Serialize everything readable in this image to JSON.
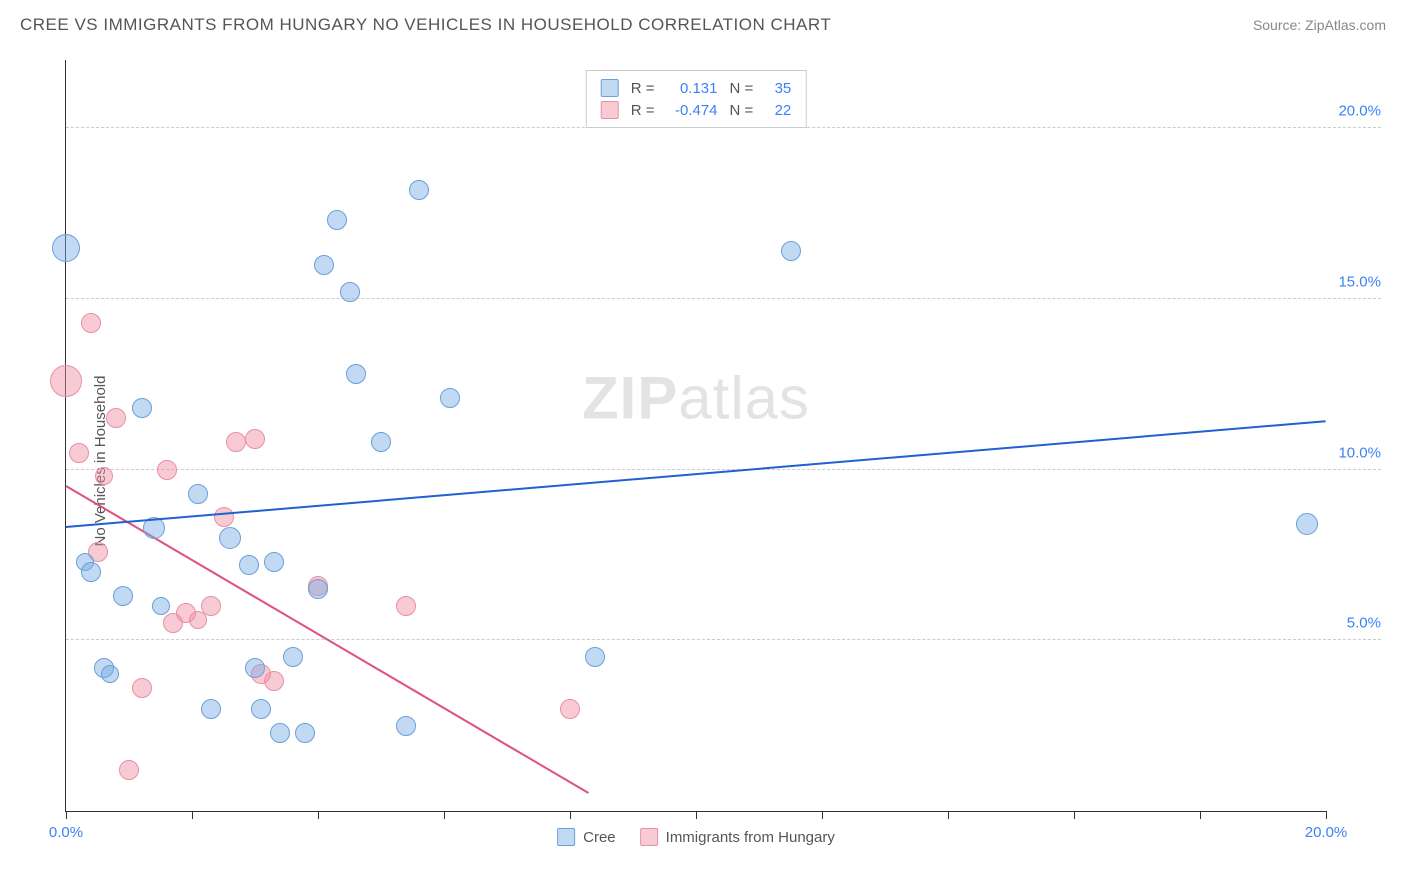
{
  "title": "CREE VS IMMIGRANTS FROM HUNGARY NO VEHICLES IN HOUSEHOLD CORRELATION CHART",
  "source_label": "Source:",
  "source_name": "ZipAtlas.com",
  "y_axis_label": "No Vehicles in Household",
  "watermark_bold": "ZIP",
  "watermark_light": "atlas",
  "chart": {
    "type": "scatter",
    "xlim": [
      0,
      20
    ],
    "ylim": [
      0,
      22
    ],
    "x_ticks_minor": [
      0,
      2,
      4,
      6,
      8,
      10,
      12,
      14,
      16,
      18,
      20
    ],
    "x_tick_labels": [
      {
        "x": 0,
        "label": "0.0%"
      },
      {
        "x": 20,
        "label": "20.0%"
      }
    ],
    "y_grid": [
      {
        "y": 5,
        "label": "5.0%"
      },
      {
        "y": 10,
        "label": "10.0%"
      },
      {
        "y": 15,
        "label": "15.0%"
      },
      {
        "y": 20,
        "label": "20.0%"
      }
    ],
    "background_color": "#ffffff",
    "grid_color": "#cccccc",
    "axis_color": "#333333",
    "tick_label_color": "#3b82f6"
  },
  "series": {
    "cree": {
      "label": "Cree",
      "fill": "rgba(120,170,230,0.45)",
      "stroke": "#6aa0d8",
      "trend_color": "#2060d0",
      "R": "0.131",
      "N": "35",
      "trend": {
        "x1": 0,
        "y1": 8.3,
        "x2": 20,
        "y2": 11.4
      },
      "points": [
        {
          "x": 0.0,
          "y": 16.5,
          "r": 14
        },
        {
          "x": 0.3,
          "y": 7.3,
          "r": 9
        },
        {
          "x": 0.4,
          "y": 7.0,
          "r": 10
        },
        {
          "x": 0.6,
          "y": 4.2,
          "r": 10
        },
        {
          "x": 0.7,
          "y": 4.0,
          "r": 9
        },
        {
          "x": 0.9,
          "y": 6.3,
          "r": 10
        },
        {
          "x": 1.2,
          "y": 11.8,
          "r": 10
        },
        {
          "x": 1.4,
          "y": 8.3,
          "r": 11
        },
        {
          "x": 1.5,
          "y": 6.0,
          "r": 9
        },
        {
          "x": 2.1,
          "y": 9.3,
          "r": 10
        },
        {
          "x": 2.3,
          "y": 3.0,
          "r": 10
        },
        {
          "x": 2.6,
          "y": 8.0,
          "r": 11
        },
        {
          "x": 2.9,
          "y": 7.2,
          "r": 10
        },
        {
          "x": 3.0,
          "y": 4.2,
          "r": 10
        },
        {
          "x": 3.1,
          "y": 3.0,
          "r": 10
        },
        {
          "x": 3.3,
          "y": 7.3,
          "r": 10
        },
        {
          "x": 3.4,
          "y": 2.3,
          "r": 10
        },
        {
          "x": 3.6,
          "y": 4.5,
          "r": 10
        },
        {
          "x": 3.8,
          "y": 2.3,
          "r": 10
        },
        {
          "x": 4.0,
          "y": 6.5,
          "r": 10
        },
        {
          "x": 4.1,
          "y": 16.0,
          "r": 10
        },
        {
          "x": 4.3,
          "y": 17.3,
          "r": 10
        },
        {
          "x": 4.5,
          "y": 15.2,
          "r": 10
        },
        {
          "x": 4.6,
          "y": 12.8,
          "r": 10
        },
        {
          "x": 5.4,
          "y": 2.5,
          "r": 10
        },
        {
          "x": 5.0,
          "y": 10.8,
          "r": 10
        },
        {
          "x": 5.6,
          "y": 18.2,
          "r": 10
        },
        {
          "x": 6.1,
          "y": 12.1,
          "r": 10
        },
        {
          "x": 8.4,
          "y": 4.5,
          "r": 10
        },
        {
          "x": 11.5,
          "y": 16.4,
          "r": 10
        },
        {
          "x": 19.7,
          "y": 8.4,
          "r": 11
        }
      ]
    },
    "hungary": {
      "label": "Immigrants from Hungary",
      "fill": "rgba(240,140,160,0.45)",
      "stroke": "#e890a5",
      "trend_color": "#e05080",
      "R": "-0.474",
      "N": "22",
      "trend": {
        "x1": 0,
        "y1": 9.5,
        "x2": 8.3,
        "y2": 0.5
      },
      "points": [
        {
          "x": 0.0,
          "y": 12.6,
          "r": 16
        },
        {
          "x": 0.2,
          "y": 10.5,
          "r": 10
        },
        {
          "x": 0.4,
          "y": 14.3,
          "r": 10
        },
        {
          "x": 0.5,
          "y": 7.6,
          "r": 10
        },
        {
          "x": 0.6,
          "y": 9.8,
          "r": 9
        },
        {
          "x": 0.8,
          "y": 11.5,
          "r": 10
        },
        {
          "x": 1.0,
          "y": 1.2,
          "r": 10
        },
        {
          "x": 1.2,
          "y": 3.6,
          "r": 10
        },
        {
          "x": 1.6,
          "y": 10.0,
          "r": 10
        },
        {
          "x": 1.7,
          "y": 5.5,
          "r": 10
        },
        {
          "x": 1.9,
          "y": 5.8,
          "r": 10
        },
        {
          "x": 2.1,
          "y": 5.6,
          "r": 9
        },
        {
          "x": 2.3,
          "y": 6.0,
          "r": 10
        },
        {
          "x": 2.5,
          "y": 8.6,
          "r": 10
        },
        {
          "x": 2.7,
          "y": 10.8,
          "r": 10
        },
        {
          "x": 3.0,
          "y": 10.9,
          "r": 10
        },
        {
          "x": 3.1,
          "y": 4.0,
          "r": 10
        },
        {
          "x": 3.3,
          "y": 3.8,
          "r": 10
        },
        {
          "x": 4.0,
          "y": 6.6,
          "r": 10
        },
        {
          "x": 5.4,
          "y": 6.0,
          "r": 10
        },
        {
          "x": 8.0,
          "y": 3.0,
          "r": 10
        }
      ]
    }
  },
  "legend_top": {
    "r_label": "R =",
    "n_label": "N ="
  }
}
